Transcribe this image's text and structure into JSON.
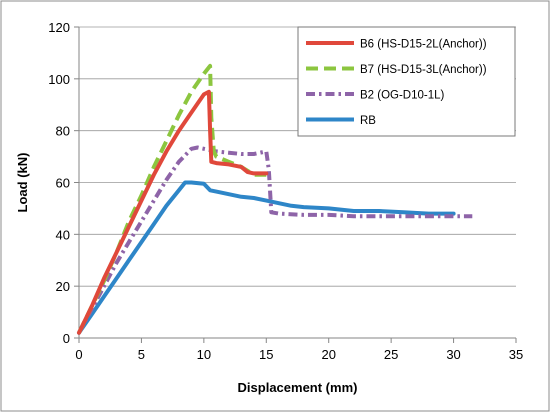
{
  "chart_data": {
    "type": "line",
    "title": "",
    "xlabel": "Displacement (mm)",
    "ylabel": "Load (kN)",
    "xlim": [
      0,
      35
    ],
    "ylim": [
      0,
      120
    ],
    "xticks": [
      0,
      5,
      10,
      15,
      20,
      25,
      30,
      35
    ],
    "yticks": [
      0,
      20,
      40,
      60,
      80,
      100,
      120
    ],
    "grid": "horizontal",
    "legend_position": "top-right",
    "series": [
      {
        "name": "B6 (HS-D15-2L(Anchor))",
        "color": "#e0483b",
        "style": "solid",
        "x": [
          0,
          1,
          2,
          3,
          4,
          5,
          6,
          7,
          8,
          9,
          10,
          10.4,
          10.5,
          10.6,
          11,
          12,
          13,
          13.5,
          14,
          15
        ],
        "y": [
          2,
          12,
          23,
          33,
          43,
          53,
          63,
          72,
          80,
          87,
          94,
          95,
          80,
          68,
          67.5,
          67,
          66,
          64,
          63.5,
          63.5
        ]
      },
      {
        "name": "B7 (HS-D15-3L(Anchor))",
        "color": "#8cc63f",
        "style": "dashed",
        "x": [
          0,
          1,
          2,
          3,
          4,
          5,
          6,
          7,
          8,
          9,
          10,
          10.5,
          10.6,
          10.8,
          11,
          12,
          13,
          14,
          15
        ],
        "y": [
          2,
          12,
          22,
          33,
          45,
          55,
          66,
          76,
          86,
          95,
          102,
          105,
          85,
          72,
          70,
          68,
          66,
          63,
          63
        ]
      },
      {
        "name": "B2 (OG-D10-1L)",
        "color": "#8e64a8",
        "style": "dashdot",
        "x": [
          0,
          1,
          2,
          3,
          4,
          5,
          6,
          7,
          8,
          9,
          9.5,
          10,
          11,
          12,
          13,
          14,
          15,
          15.2,
          15.4,
          16,
          18,
          20,
          22,
          25,
          28,
          30,
          31.5
        ],
        "y": [
          2,
          11,
          20,
          29,
          37,
          45,
          53,
          61,
          68,
          73,
          73.5,
          73,
          72,
          71.5,
          71,
          71,
          72,
          65,
          48.5,
          48,
          47.5,
          47.5,
          47,
          47,
          47,
          47,
          47
        ]
      },
      {
        "name": "RB",
        "color": "#2e86c8",
        "style": "solid",
        "x": [
          0,
          1,
          2,
          3,
          4,
          5,
          6,
          7,
          8,
          8.5,
          9,
          10,
          10.5,
          11,
          12,
          13,
          14,
          15,
          16,
          17,
          18,
          20,
          22,
          24,
          26,
          28,
          30
        ],
        "y": [
          2,
          9,
          16,
          23,
          30,
          37,
          44,
          51,
          57,
          60,
          60,
          59.5,
          57,
          56.5,
          55.5,
          54.5,
          54,
          53,
          52,
          51,
          50.5,
          50,
          49,
          49,
          48.5,
          48,
          48
        ]
      }
    ]
  }
}
